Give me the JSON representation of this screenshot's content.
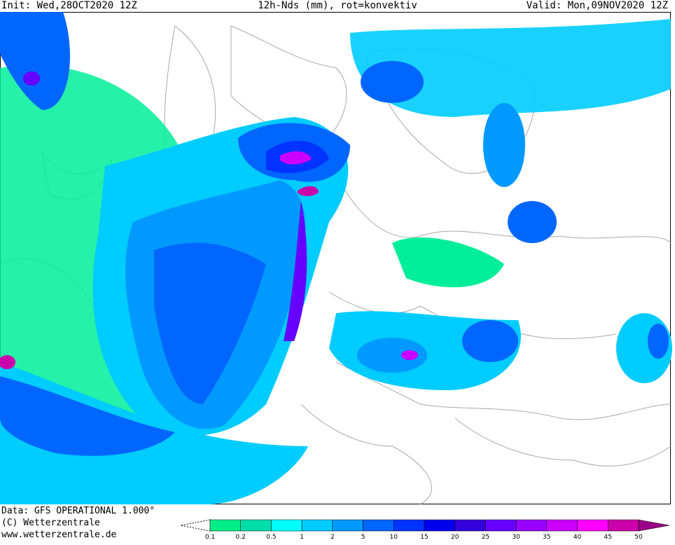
{
  "header": {
    "init": "Init: Wed,28OCT2020 12Z",
    "title": "12h-Nds (mm), rot=konvektiv",
    "valid": "Valid: Mon,09NOV2020 12Z"
  },
  "footer": {
    "data": "Data: GFS OPERATIONAL 1.000°",
    "copyright": "(C) Wetterzentrale",
    "url": "www.wetterzentrale.de"
  },
  "legend": {
    "levels": [
      "0.1",
      "0.2",
      "0.5",
      "1",
      "2",
      "5",
      "10",
      "15",
      "20",
      "25",
      "30",
      "35",
      "40",
      "45",
      "50"
    ],
    "colors": [
      "#00ee88",
      "#00ddaa",
      "#00ffff",
      "#00ccff",
      "#0099ff",
      "#0066ff",
      "#0033ff",
      "#0000ee",
      "#3300dd",
      "#6600ff",
      "#9900ff",
      "#cc00ff",
      "#ff00ff",
      "#cc00aa",
      "#990088"
    ]
  }
}
